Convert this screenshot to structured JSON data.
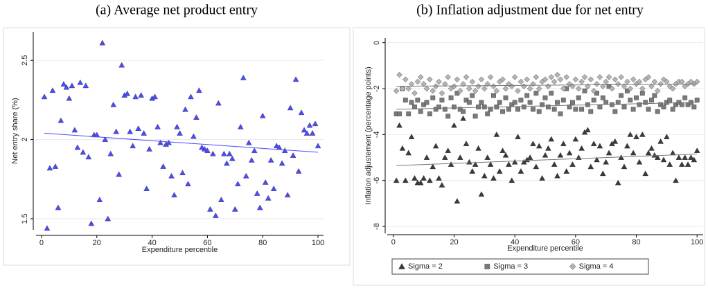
{
  "chart_data": [
    {
      "type": "scatter",
      "title": "(a) Average net product entry",
      "xlabel": "Expenditure percentile",
      "ylabel": "Net entry share (%)",
      "xlim": [
        -2,
        102
      ],
      "ylim": [
        1.43,
        2.68
      ],
      "xticks": [
        0,
        20,
        40,
        60,
        80,
        100
      ],
      "yticks": [
        1.5,
        2,
        2.5
      ],
      "grid": true,
      "x": [
        1,
        2,
        3,
        4,
        5,
        6,
        7,
        8,
        9,
        10,
        11,
        12,
        13,
        14,
        15,
        16,
        17,
        18,
        19,
        20,
        21,
        22,
        23,
        24,
        25,
        26,
        27,
        28,
        29,
        30,
        31,
        32,
        33,
        34,
        35,
        36,
        37,
        38,
        39,
        40,
        41,
        42,
        43,
        44,
        45,
        46,
        47,
        48,
        49,
        50,
        51,
        52,
        53,
        54,
        55,
        56,
        57,
        58,
        59,
        60,
        61,
        62,
        63,
        64,
        65,
        66,
        67,
        68,
        69,
        70,
        71,
        72,
        73,
        74,
        75,
        76,
        77,
        78,
        79,
        80,
        81,
        82,
        83,
        84,
        85,
        86,
        87,
        88,
        89,
        90,
        91,
        92,
        93,
        94,
        95,
        96,
        97,
        98,
        99,
        100
      ],
      "series": [
        {
          "color": "#4a4aff",
          "marker": "triangle",
          "fit": [
            2.04,
            1.92
          ],
          "values": [
            2.27,
            1.44,
            1.82,
            2.31,
            1.83,
            1.57,
            2.12,
            2.35,
            2.33,
            2.26,
            2.34,
            2.06,
            1.95,
            2.36,
            1.92,
            2.34,
            1.89,
            1.47,
            2.03,
            2.03,
            1.62,
            2.61,
            2.0,
            1.5,
            1.91,
            2.22,
            2.05,
            1.78,
            2.47,
            2.28,
            2.29,
            2.05,
            1.96,
            2.27,
            2.07,
            2.28,
            2.04,
            1.69,
            1.94,
            2.26,
            2.27,
            2.08,
            1.98,
            1.83,
            1.97,
            1.98,
            1.77,
            1.65,
            2.08,
            2.04,
            1.79,
            2.19,
            1.72,
            2.27,
            2.02,
            2.14,
            2.31,
            1.95,
            1.94,
            1.93,
            1.56,
            1.91,
            1.52,
            2.23,
            1.62,
            1.91,
            1.85,
            1.91,
            1.88,
            1.56,
            1.72,
            2.08,
            2.39,
            1.77,
            1.98,
            1.87,
            1.93,
            1.66,
            1.57,
            2.15,
            1.73,
            1.63,
            1.87,
            1.69,
            1.96,
            1.95,
            1.85,
            1.93,
            1.65,
            2.2,
            1.9,
            2.38,
            1.8,
            2.17,
            2.06,
            2.04,
            2.09,
            2.04,
            2.1,
            1.96
          ]
        }
      ]
    },
    {
      "type": "scatter",
      "title": "(b) Inflation adjustment due for net entry",
      "xlabel": "Expenditure percentile",
      "ylabel": "Inflation adjustement (percentage points)",
      "xlim": [
        -2,
        102
      ],
      "ylim": [
        -8.3,
        0.2
      ],
      "xticks": [
        0,
        20,
        40,
        60,
        80,
        100
      ],
      "yticks": [
        -8,
        -6,
        -4,
        -2,
        0
      ],
      "grid": true,
      "legend": "bottom",
      "x": [
        1,
        2,
        3,
        4,
        5,
        6,
        7,
        8,
        9,
        10,
        11,
        12,
        13,
        14,
        15,
        16,
        17,
        18,
        19,
        20,
        21,
        22,
        23,
        24,
        25,
        26,
        27,
        28,
        29,
        30,
        31,
        32,
        33,
        34,
        35,
        36,
        37,
        38,
        39,
        40,
        41,
        42,
        43,
        44,
        45,
        46,
        47,
        48,
        49,
        50,
        51,
        52,
        53,
        54,
        55,
        56,
        57,
        58,
        59,
        60,
        61,
        62,
        63,
        64,
        65,
        66,
        67,
        68,
        69,
        70,
        71,
        72,
        73,
        74,
        75,
        76,
        77,
        78,
        79,
        80,
        81,
        82,
        83,
        84,
        85,
        86,
        87,
        88,
        89,
        90,
        91,
        92,
        93,
        94,
        95,
        96,
        97,
        98,
        99,
        100
      ],
      "series": [
        {
          "name": "Sigma = 2",
          "color": "#3a3a3a",
          "marker": "triangle",
          "fit": [
            -5.35,
            -4.85
          ],
          "values": [
            -6.0,
            -3.6,
            -4.6,
            -6.0,
            -4.8,
            -4.1,
            -5.9,
            -6.1,
            -6.1,
            -5.9,
            -5.0,
            -6.0,
            -5.4,
            -4.5,
            -5.9,
            -6.2,
            -5.0,
            -4.7,
            -5.3,
            -3.6,
            -6.9,
            -5.0,
            -3.3,
            -4.4,
            -5.2,
            -5.6,
            -5.3,
            -4.6,
            -6.6,
            -5.8,
            -5.0,
            -5.3,
            -5.9,
            -4.0,
            -5.6,
            -4.7,
            -4.9,
            -5.3,
            -6.0,
            -5.2,
            -4.1,
            -5.6,
            -5.2,
            -5.1,
            -5.0,
            -4.4,
            -5.4,
            -4.5,
            -5.9,
            -4.9,
            -4.6,
            -4.2,
            -5.3,
            -5.8,
            -4.9,
            -4.4,
            -5.6,
            -4.8,
            -5.3,
            -4.2,
            -5.0,
            -4.6,
            -3.9,
            -3.8,
            -5.4,
            -4.4,
            -5.1,
            -4.5,
            -5.7,
            -5.2,
            -4.8,
            -4.4,
            -4.3,
            -6.1,
            -5.0,
            -5.4,
            -4.5,
            -4.0,
            -4.8,
            -4.1,
            -5.2,
            -4.0,
            -5.7,
            -4.8,
            -4.6,
            -4.9,
            -5.0,
            -4.3,
            -5.1,
            -4.1,
            -5.3,
            -4.8,
            -6.0,
            -5.0,
            -5.3,
            -5.0,
            -5.3,
            -5.0,
            -5.1,
            -4.7
          ]
        },
        {
          "name": "Sigma = 3",
          "color": "#7a7a7a",
          "marker": "square",
          "fit": [
            -2.9,
            -2.6
          ],
          "values": [
            -3.1,
            -3.1,
            -2.0,
            -2.5,
            -3.1,
            -2.6,
            -2.8,
            -2.5,
            -3.0,
            -2.7,
            -2.6,
            -3.1,
            -2.4,
            -2.9,
            -2.8,
            -2.5,
            -2.9,
            -3.2,
            -2.4,
            -2.8,
            -2.2,
            -2.9,
            -3.0,
            -2.5,
            -2.6,
            -2.3,
            -3.2,
            -2.8,
            -2.6,
            -2.8,
            -3.1,
            -2.9,
            -2.3,
            -2.8,
            -2.6,
            -3.0,
            -2.4,
            -2.9,
            -2.7,
            -2.6,
            -2.9,
            -2.5,
            -2.8,
            -2.3,
            -2.6,
            -2.9,
            -2.2,
            -3.0,
            -2.7,
            -2.4,
            -2.8,
            -2.2,
            -2.9,
            -2.6,
            -3.1,
            -2.5,
            -2.0,
            -2.8,
            -2.6,
            -2.9,
            -2.4,
            -2.9,
            -2.1,
            -2.7,
            -3.0,
            -2.5,
            -2.2,
            -2.8,
            -2.4,
            -2.6,
            -1.9,
            -2.7,
            -3.0,
            -2.6,
            -2.3,
            -2.8,
            -2.1,
            -2.5,
            -2.9,
            -2.4,
            -2.7,
            -2.2,
            -2.6,
            -2.9,
            -2.5,
            -2.3,
            -3.0,
            -2.7,
            -2.8,
            -2.6,
            -2.5,
            -2.9,
            -2.7,
            -2.6,
            -2.7,
            -2.4,
            -2.7,
            -2.6,
            -2.8,
            -2.5
          ]
        },
        {
          "name": "Sigma = 4",
          "color": "#b4b4b4",
          "marker": "diamond",
          "fit": [
            -1.9,
            -1.8
          ],
          "values": [
            -2.1,
            -1.4,
            -2.0,
            -1.6,
            -2.0,
            -1.8,
            -2.2,
            -1.7,
            -1.5,
            -1.8,
            -2.0,
            -1.6,
            -2.1,
            -1.9,
            -1.7,
            -2.2,
            -1.8,
            -1.5,
            -2.0,
            -1.9,
            -1.6,
            -2.1,
            -1.8,
            -1.5,
            -2.0,
            -1.7,
            -2.1,
            -1.9,
            -1.6,
            -2.0,
            -1.8,
            -1.5,
            -1.9,
            -2.1,
            -1.7,
            -1.6,
            -2.0,
            -1.8,
            -1.9,
            -1.5,
            -2.1,
            -1.7,
            -1.9,
            -1.6,
            -2.0,
            -1.8,
            -1.5,
            -2.0,
            -1.7,
            -1.6,
            -1.9,
            -1.5,
            -1.7,
            -1.4,
            -1.6,
            -2.0,
            -1.5,
            -1.8,
            -1.9,
            -1.6,
            -2.0,
            -1.7,
            -1.5,
            -1.9,
            -1.6,
            -2.1,
            -1.8,
            -1.5,
            -1.9,
            -1.7,
            -1.5,
            -2.0,
            -1.6,
            -1.8,
            -1.5,
            -1.9,
            -1.7,
            -2.0,
            -1.6,
            -1.8,
            -1.7,
            -2.0,
            -1.6,
            -1.5,
            -1.9,
            -1.7,
            -2.1,
            -1.8,
            -1.6,
            -1.7,
            -1.9,
            -2.0,
            -1.8,
            -1.7,
            -1.7,
            -1.9,
            -1.8,
            -1.7,
            -1.8,
            -1.7
          ]
        }
      ]
    }
  ]
}
